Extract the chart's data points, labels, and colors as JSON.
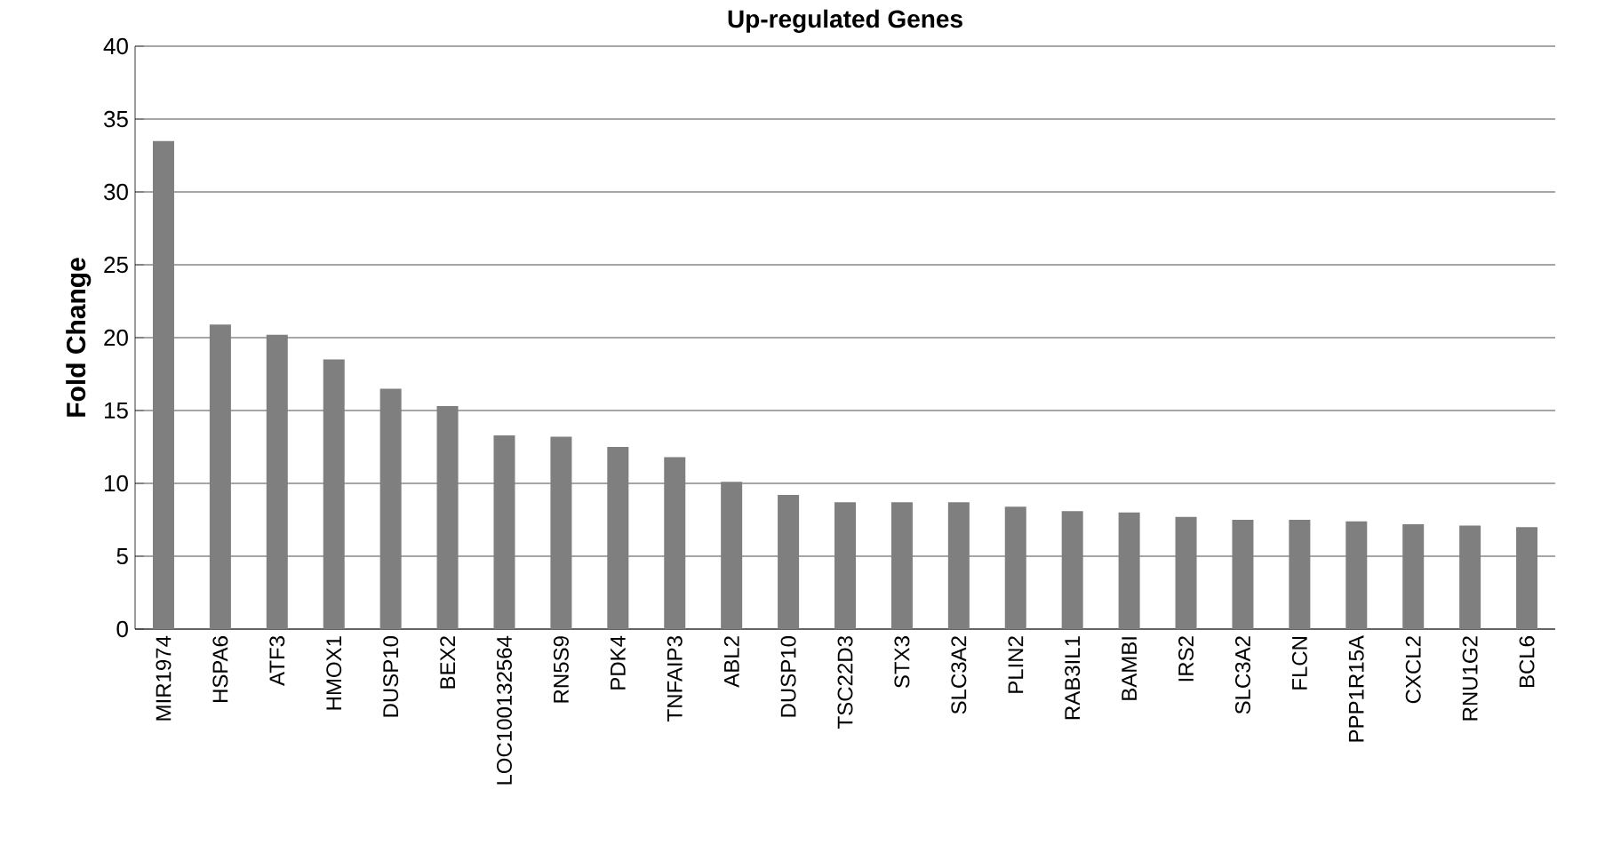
{
  "chart_data": {
    "type": "bar",
    "title": "Up-regulated Genes",
    "ylabel": "Fold Change",
    "categories": [
      "MIR1974",
      "HSPA6",
      "ATF3",
      "HMOX1",
      "DUSP10",
      "BEX2",
      "LOC100132564",
      "RN5S9",
      "PDK4",
      "TNFAIP3",
      "ABL2",
      "DUSP10",
      "TSC22D3",
      "STX3",
      "SLC3A2",
      "PLIN2",
      "RAB3IL1",
      "BAMBI",
      "IRS2",
      "SLC3A2",
      "FLCN",
      "PPP1R15A",
      "CXCL2",
      "RNU1G2",
      "BCL6"
    ],
    "values": [
      33.5,
      20.9,
      20.2,
      18.5,
      16.5,
      15.3,
      13.3,
      13.2,
      12.5,
      11.8,
      10.1,
      9.2,
      8.7,
      8.7,
      8.7,
      8.4,
      8.1,
      8.0,
      7.7,
      7.5,
      7.5,
      7.4,
      7.2,
      7.1,
      7.0
    ],
    "color": "#7f7f7f",
    "ylim": [
      0,
      40
    ],
    "yticks": [
      0,
      5,
      10,
      15,
      20,
      25,
      30,
      35,
      40
    ],
    "grid": "y"
  }
}
